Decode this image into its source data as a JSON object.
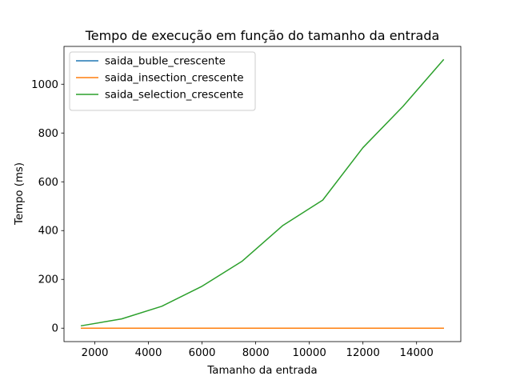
{
  "chart_data": {
    "type": "line",
    "title": "Tempo de execução em função do tamanho da entrada",
    "xlabel": "Tamanho da entrada",
    "ylabel": "Tempo (ms)",
    "xlim": [
      850,
      15650
    ],
    "ylim": [
      -55,
      1155
    ],
    "xticks": [
      2000,
      4000,
      6000,
      8000,
      10000,
      12000,
      14000
    ],
    "yticks": [
      0,
      200,
      400,
      600,
      800,
      1000
    ],
    "x": [
      1500,
      3000,
      4500,
      6000,
      7500,
      9000,
      10500,
      12000,
      13500,
      15000
    ],
    "series": [
      {
        "name": "saida_buble_crescente",
        "color": "#1f77b4",
        "values": [
          0,
          0,
          0,
          0,
          0,
          0,
          0,
          0,
          0,
          0
        ]
      },
      {
        "name": "saida_insection_crescente",
        "color": "#ff7f0e",
        "values": [
          0,
          0,
          0,
          0,
          0,
          0,
          0,
          0,
          0,
          0
        ]
      },
      {
        "name": "saida_selection_crescente",
        "color": "#2ca02c",
        "values": [
          10,
          38,
          90,
          172,
          275,
          420,
          525,
          740,
          910,
          1100
        ]
      }
    ],
    "grid": false,
    "legend_position": "top-left"
  }
}
